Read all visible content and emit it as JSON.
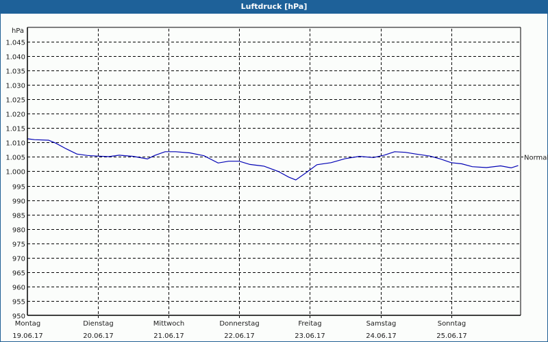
{
  "window": {
    "title": "Luftdruck [hPa]"
  },
  "colors": {
    "titlebar": "#1e6199",
    "series": "#0000b4",
    "grid": "#000000",
    "background": "#fbfdfb"
  },
  "chart_data": {
    "type": "line",
    "title": "Luftdruck [hPa]",
    "xlabel": "",
    "ylabel": "hPa",
    "ylim": [
      950,
      1045
    ],
    "grid": true,
    "y_ticks": [
      "950",
      "955",
      "960",
      "965",
      "970",
      "975",
      "980",
      "985",
      "990",
      "995",
      "1.000",
      "1.005",
      "1.010",
      "1.015",
      "1.020",
      "1.025",
      "1.030",
      "1.035",
      "1.040",
      "1.045"
    ],
    "x_ticks": [
      {
        "day": "Montag",
        "date": "19.06.17"
      },
      {
        "day": "Dienstag",
        "date": "20.06.17"
      },
      {
        "day": "Mittwoch",
        "date": "21.06.17"
      },
      {
        "day": "Donnerstag",
        "date": "22.06.17"
      },
      {
        "day": "Freitag",
        "date": "23.06.17"
      },
      {
        "day": "Samstag",
        "date": "24.06.17"
      },
      {
        "day": "Sonntag",
        "date": "25.06.17"
      }
    ],
    "reference_line": {
      "label": "Normal",
      "value": 1005
    },
    "series": [
      {
        "name": "Luftdruck",
        "x_days": [
          0,
          0.1,
          0.3,
          0.4,
          0.55,
          0.7,
          0.85,
          1.0,
          1.15,
          1.3,
          1.5,
          1.7,
          1.8,
          1.95,
          2.1,
          2.3,
          2.5,
          2.7,
          2.85,
          3.0,
          3.15,
          3.35,
          3.55,
          3.7,
          3.8,
          3.95,
          4.1,
          4.3,
          4.5,
          4.7,
          4.9,
          5.05,
          5.2,
          5.35,
          5.5,
          5.7,
          5.85,
          6.0,
          6.15,
          6.3,
          6.5,
          6.7,
          6.85,
          6.95
        ],
        "values": [
          1011.3,
          1011.0,
          1010.8,
          1009.8,
          1007.8,
          1006.0,
          1005.5,
          1005.3,
          1005.1,
          1005.6,
          1005.2,
          1004.3,
          1005.5,
          1006.8,
          1006.8,
          1006.4,
          1005.4,
          1002.9,
          1003.5,
          1003.5,
          1002.4,
          1001.8,
          1000.0,
          998.0,
          997.0,
          999.6,
          1002.3,
          1003.0,
          1004.4,
          1005.2,
          1004.8,
          1005.6,
          1006.8,
          1006.6,
          1006.0,
          1005.3,
          1004.3,
          1003.0,
          1002.6,
          1001.6,
          1001.3,
          1001.9,
          1001.2,
          1002.0
        ]
      }
    ]
  }
}
